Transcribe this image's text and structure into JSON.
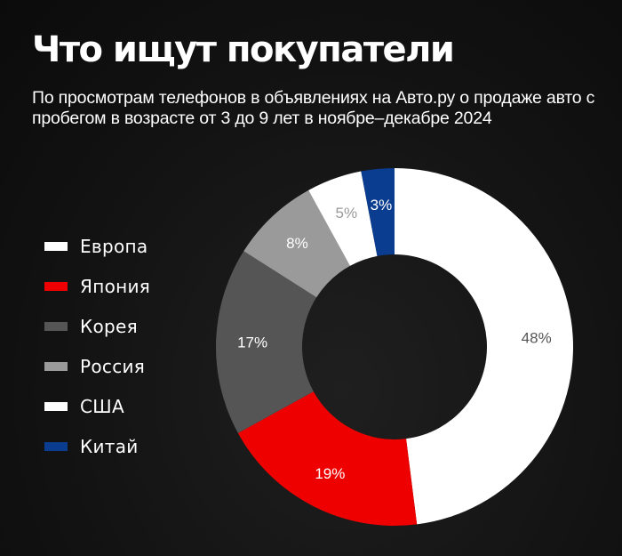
{
  "title": "Что ищут покупатели",
  "subtitle": "По просмотрам телефонов в объявлениях на Авто.ру о продаже авто с пробегом в возрасте от 3 до 9 лет в ноябре–декабре 2024",
  "background_color": "#121212",
  "chart_data": {
    "type": "pie",
    "variant": "donut",
    "legend_position": "left",
    "slices": [
      {
        "label": "Европа",
        "value": 48,
        "value_label": "48%",
        "color": "#ffffff",
        "text_color": "#555555"
      },
      {
        "label": "Япония",
        "value": 19,
        "value_label": "19%",
        "color": "#ee0000",
        "text_color": "#ffffff"
      },
      {
        "label": "Корея",
        "value": 17,
        "value_label": "17%",
        "color": "#555555",
        "text_color": "#ffffff"
      },
      {
        "label": "Россия",
        "value": 8,
        "value_label": "8%",
        "color": "#9a9a9a",
        "text_color": "#ffffff"
      },
      {
        "label": "США",
        "value": 5,
        "value_label": "5%",
        "color": "#ffffff",
        "text_color": "#9a9a9a"
      },
      {
        "label": "Китай",
        "value": 3,
        "value_label": "3%",
        "color": "#0a3d8f",
        "text_color": "#ffffff"
      }
    ]
  }
}
